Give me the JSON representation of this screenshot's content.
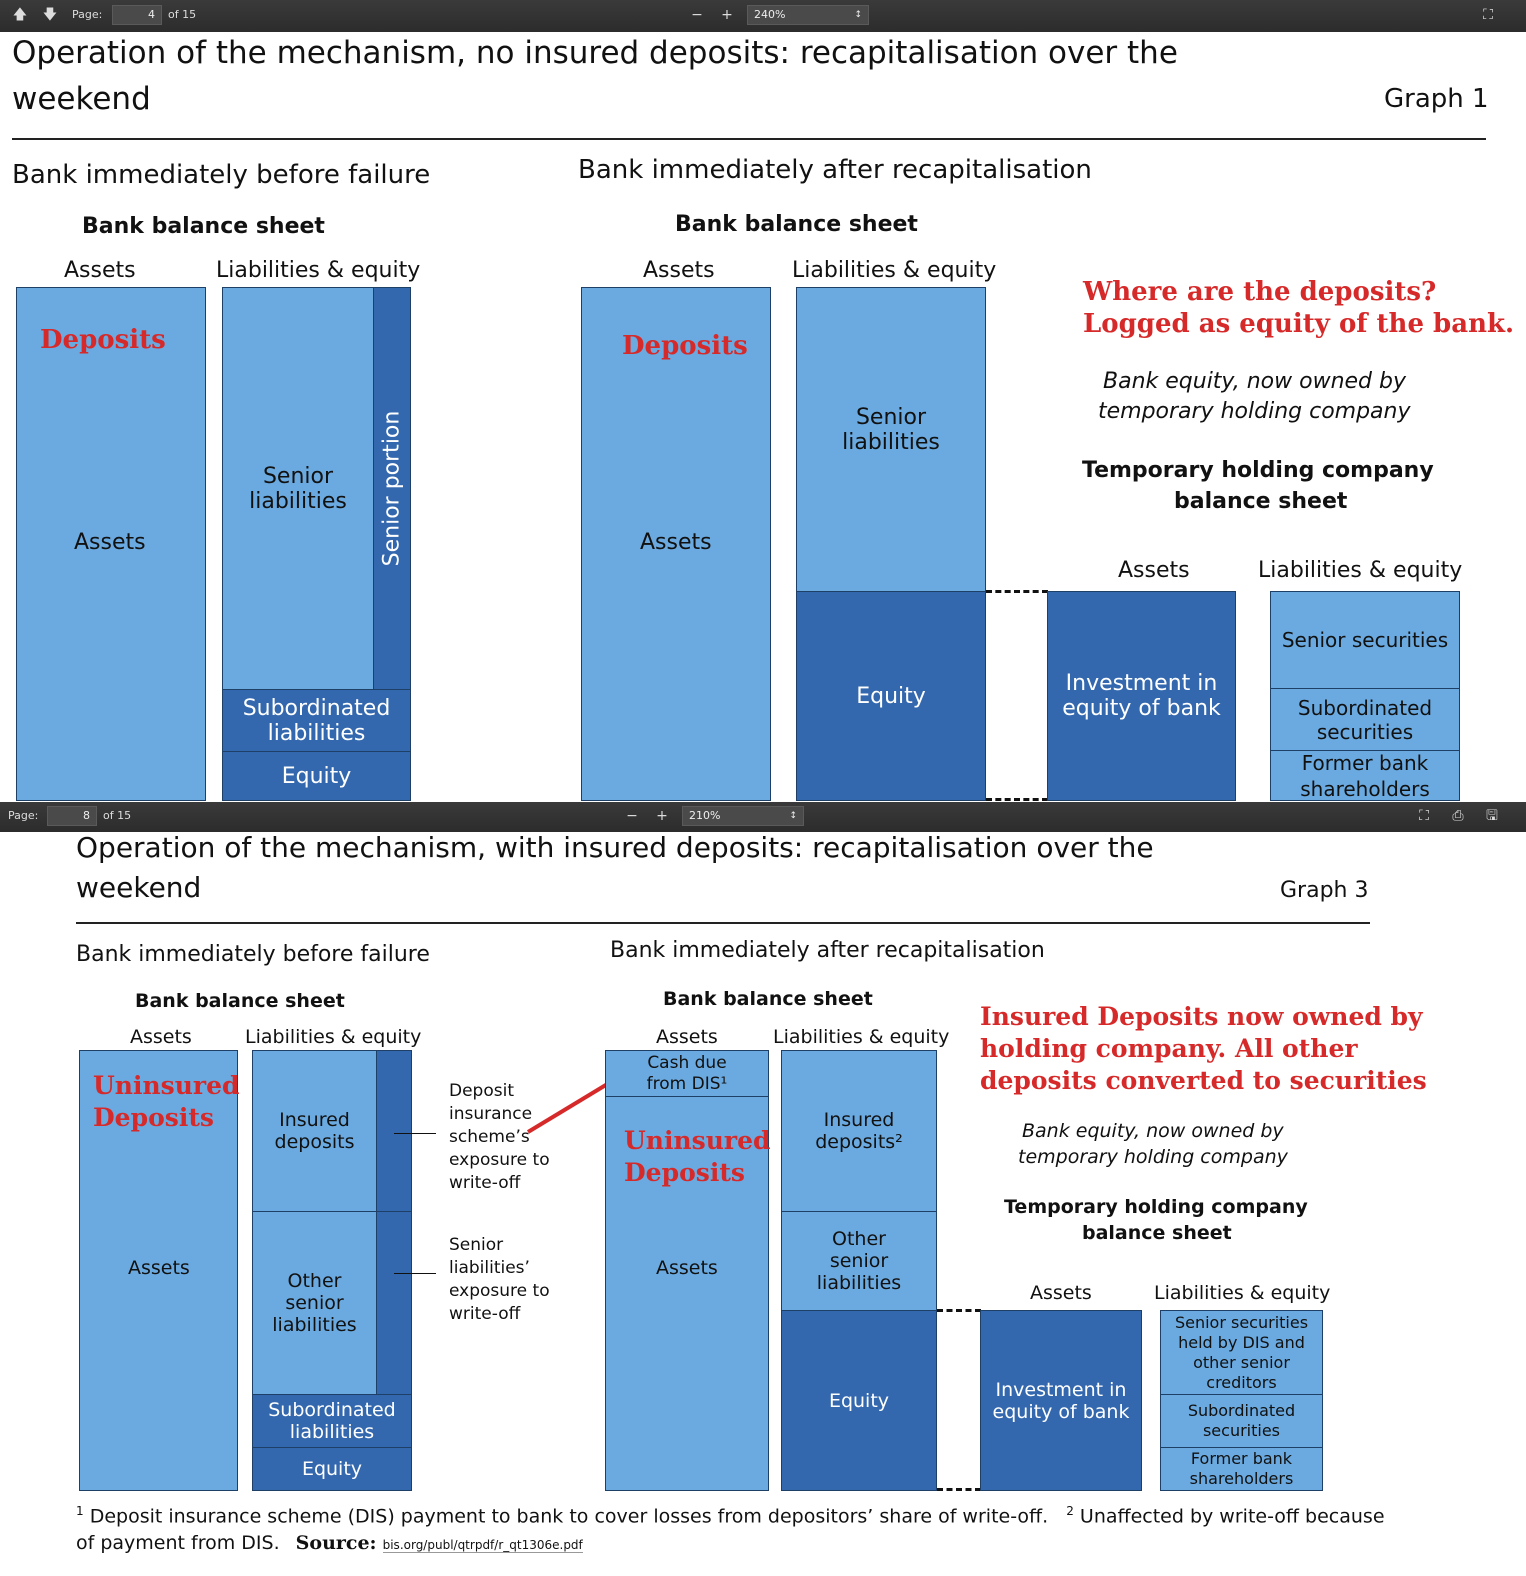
{
  "toolbar1": {
    "page_label": "Page:",
    "page_value": "4",
    "page_total": "of 15",
    "zoom": "240%"
  },
  "toolbar2": {
    "page_label": "Page:",
    "page_value": "8",
    "page_total": "of 15",
    "zoom": "210%"
  },
  "icons": [
    "arrow-up-icon",
    "arrow-down-icon",
    "minus-icon",
    "plus-icon",
    "fullscreen-icon",
    "print-icon",
    "save-icon"
  ],
  "colors": {
    "light_block": "#6aaae0",
    "dark_block": "#3468ae",
    "annotation_red": "#d62a2a"
  },
  "graph1": {
    "title_line1": "Operation of the mechanism, no insured deposits: recapitalisation over the",
    "title_line2": "weekend",
    "graph_label": "Graph 1",
    "before_heading": "Bank immediately before failure",
    "after_heading": "Bank immediately after recapitalisation",
    "bank_bs_title": "Bank balance sheet",
    "assets_label": "Assets",
    "liab_label": "Liabilities & equity",
    "deposits_red": "Deposits",
    "assets_block": "Assets",
    "senior_liabilities": "Senior\nliabilities",
    "senior_portion": "Senior portion",
    "subordinated_liabilities": "Subordinated\nliabilities",
    "equity": "Equity",
    "note_line1": "Where are the deposits?",
    "note_line2": "Logged as equity of the bank.",
    "bank_equity_note_1": "Bank equity, now owned by",
    "bank_equity_note_2": "temporary holding company",
    "thc_title_1": "Temporary holding company",
    "thc_title_2": "balance sheet",
    "investment": "Investment in\nequity of bank",
    "senior_securities": "Senior securities",
    "subordinated_securities": "Subordinated\nsecurities",
    "former_shareholders": "Former bank\nshareholders"
  },
  "graph3": {
    "title_line1": "Operation of the mechanism, with insured deposits: recapitalisation over the",
    "title_line2": "weekend",
    "graph_label": "Graph 3",
    "before_heading": "Bank immediately before failure",
    "after_heading": "Bank immediately after recapitalisation",
    "bank_bs_title": "Bank balance sheet",
    "assets_label": "Assets",
    "liab_label": "Liabilities & equity",
    "uninsured_red": "Uninsured\nDeposits",
    "assets_block": "Assets",
    "insured_deposits": "Insured\ndeposits",
    "insured_deposits_after": "Insured\ndeposits²",
    "other_senior": "Other\nsenior\nliabilities",
    "subordinated_liabilities": "Subordinated\nliabilities",
    "equity": "Equity",
    "dis_exposure": "Deposit\ninsurance\nscheme’s\nexposure to\nwrite-off",
    "senior_exposure": "Senior\nliabilities’\nexposure to\nwrite-off",
    "cash_due": "Cash due\nfrom DIS¹",
    "note_line1": "Insured Deposits now owned by",
    "note_line2": "holding company. All other",
    "note_line3": "deposits converted to securities",
    "bank_equity_note_1": "Bank equity, now owned by",
    "bank_equity_note_2": "temporary holding company",
    "thc_title_1": "Temporary holding company",
    "thc_title_2": "balance sheet",
    "investment": "Investment in\nequity of bank",
    "senior_securities": "Senior securities\nheld by DIS and\nother senior\ncreditors",
    "subordinated_securities": "Subordinated\nsecurities",
    "former_shareholders": "Former bank\nshareholders",
    "footnote1_sup": "1",
    "footnote1": "Deposit insurance scheme (DIS) payment to bank to cover losses from depositors’ share of write-off.",
    "footnote2_sup": "2",
    "footnote2": "Unaffected by write-off because",
    "footnote_line2": "of payment from DIS.",
    "source_label": "Source:",
    "source_url": "bis.org/publ/qtrpdf/r_qt1306e.pdf"
  }
}
